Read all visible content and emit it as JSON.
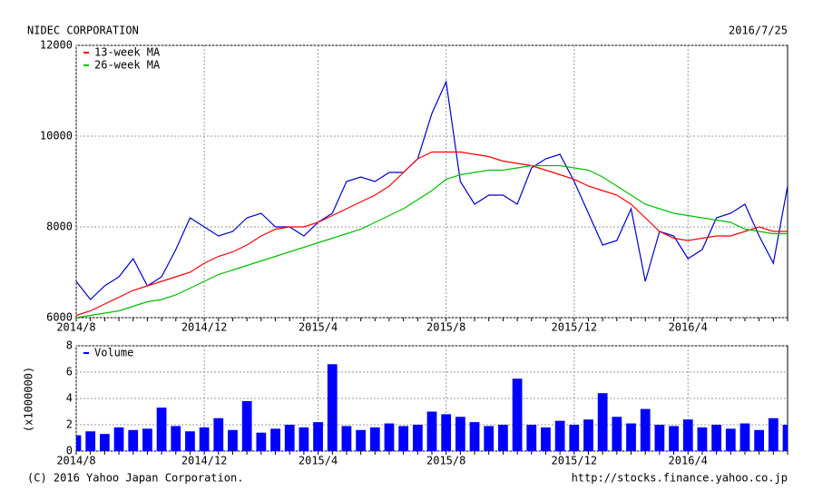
{
  "chart_data": [
    {
      "type": "line",
      "title": "NIDEC CORPORATION",
      "date": "2016/7/25",
      "categories": [
        "2014/8",
        null,
        null,
        null,
        null,
        null,
        null,
        null,
        null,
        "2014/12",
        null,
        null,
        null,
        null,
        null,
        null,
        null,
        "2015/4",
        null,
        null,
        null,
        null,
        null,
        null,
        null,
        null,
        "2015/8",
        null,
        null,
        null,
        null,
        null,
        null,
        null,
        null,
        "2015/12",
        null,
        null,
        null,
        null,
        null,
        null,
        null,
        "2016/4",
        null,
        null,
        null,
        null,
        null,
        null,
        null
      ],
      "series": [
        {
          "name": null,
          "color": "#0000cc",
          "values": [
            6800,
            6400,
            6700,
            6900,
            7300,
            6700,
            6900,
            7500,
            8200,
            8000,
            7800,
            7900,
            8200,
            8300,
            8000,
            8000,
            7800,
            8100,
            8300,
            9000,
            9100,
            9000,
            9200,
            9200,
            9500,
            10500,
            11200,
            9000,
            8500,
            8700,
            8700,
            8500,
            9300,
            9500,
            9600,
            9000,
            8300,
            7600,
            7700,
            8400,
            6800,
            7900,
            7800,
            7300,
            7500,
            8200,
            8300,
            8500,
            7800,
            7200,
            8900
          ]
        },
        {
          "name": "13-week MA",
          "color": "#ff0000",
          "values": [
            6050,
            6150,
            6300,
            6450,
            6600,
            6700,
            6800,
            6900,
            7000,
            7200,
            7350,
            7450,
            7600,
            7800,
            7950,
            8000,
            8000,
            8100,
            8250,
            8400,
            8550,
            8700,
            8900,
            9200,
            9500,
            9650,
            9650,
            9650,
            9600,
            9550,
            9450,
            9400,
            9350,
            9250,
            9150,
            9050,
            8900,
            8800,
            8700,
            8500,
            8200,
            7900,
            7750,
            7700,
            7750,
            7800,
            7800,
            7900,
            8000,
            7900,
            7900
          ]
        },
        {
          "name": "26-week MA",
          "color": "#00c000",
          "values": [
            6000,
            6050,
            6100,
            6150,
            6250,
            6350,
            6400,
            6500,
            6650,
            6800,
            6950,
            7050,
            7150,
            7250,
            7350,
            7450,
            7550,
            7650,
            7750,
            7850,
            7950,
            8100,
            8250,
            8400,
            8600,
            8800,
            9050,
            9150,
            9200,
            9250,
            9250,
            9300,
            9350,
            9350,
            9350,
            9300,
            9250,
            9100,
            8900,
            8700,
            8500,
            8400,
            8300,
            8250,
            8200,
            8150,
            8100,
            7950,
            7900,
            7850,
            7850
          ]
        }
      ],
      "ylim": [
        6000,
        12000
      ],
      "yticks": [
        6000,
        8000,
        10000,
        12000
      ],
      "grid": true
    },
    {
      "type": "bar",
      "ylabel": "(x1000000)",
      "categories": [
        "2014/8",
        null,
        null,
        null,
        null,
        null,
        null,
        null,
        null,
        "2014/12",
        null,
        null,
        null,
        null,
        null,
        null,
        null,
        "2015/4",
        null,
        null,
        null,
        null,
        null,
        null,
        null,
        null,
        "2015/8",
        null,
        null,
        null,
        null,
        null,
        null,
        null,
        null,
        "2015/12",
        null,
        null,
        null,
        null,
        null,
        null,
        null,
        "2016/4",
        null,
        null,
        null,
        null,
        null,
        null,
        null
      ],
      "series": [
        {
          "name": "Volume",
          "color": "#0000ff",
          "values": [
            1.2,
            1.5,
            1.3,
            1.8,
            1.6,
            1.7,
            3.3,
            1.9,
            1.5,
            1.8,
            2.5,
            1.6,
            3.8,
            1.4,
            1.7,
            2.0,
            1.8,
            2.2,
            6.6,
            1.9,
            1.6,
            1.8,
            2.1,
            1.9,
            2.0,
            3.0,
            2.8,
            2.6,
            2.2,
            1.9,
            2.0,
            5.5,
            2.0,
            1.8,
            2.3,
            2.0,
            2.4,
            4.4,
            2.6,
            2.1,
            3.2,
            2.0,
            1.9,
            2.4,
            1.8,
            2.0,
            1.7,
            2.1,
            1.6,
            2.5,
            2.0
          ]
        }
      ],
      "ylim": [
        0,
        8
      ],
      "yticks": [
        0,
        2,
        4,
        6,
        8
      ],
      "grid": true
    }
  ],
  "footer": {
    "copyright": "(C) 2016 Yahoo Japan Corporation.",
    "url": "http://stocks.finance.yahoo.co.jp"
  }
}
